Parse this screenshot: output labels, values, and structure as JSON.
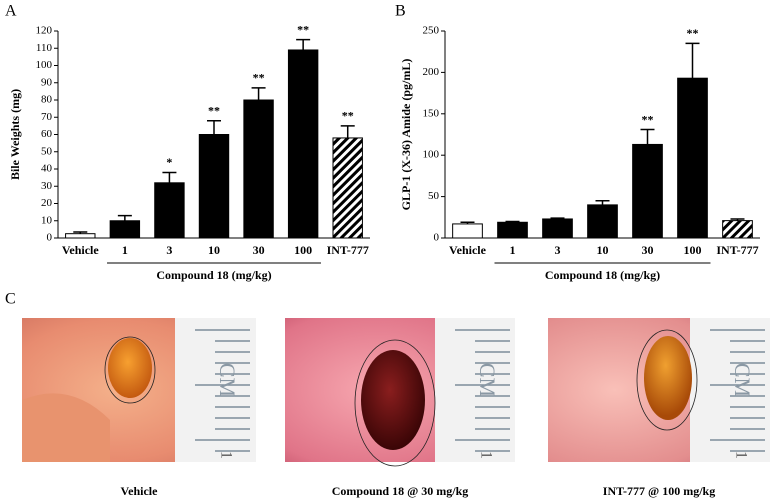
{
  "chart_data": [
    {
      "type": "bar",
      "panel": "A",
      "y_label": "Bile Weights (mg)",
      "group_label": "Compound 18 (mg/kg)",
      "categories": [
        "Vehicle",
        "1",
        "3",
        "10",
        "30",
        "100",
        "INT-777"
      ],
      "values": [
        2.5,
        10,
        32,
        60,
        80,
        109,
        58
      ],
      "errors": [
        1,
        3,
        6,
        8,
        7,
        6,
        7
      ],
      "significance": [
        null,
        null,
        "*",
        "**",
        "**",
        "**",
        "**"
      ],
      "colors": [
        "#ffffff",
        "#000000",
        "#000000",
        "#000000",
        "#000000",
        "#000000",
        "hatch"
      ],
      "ylim": [
        0,
        120
      ],
      "yticks": [
        0,
        10,
        20,
        30,
        40,
        50,
        60,
        70,
        80,
        90,
        100,
        110,
        120
      ]
    },
    {
      "type": "bar",
      "panel": "B",
      "y_label": "GLP-1 (X-36) Amide (pg/mL)",
      "group_label": "Compound 18 (mg/kg)",
      "categories": [
        "Vehicle",
        "1",
        "3",
        "10",
        "30",
        "100",
        "INT-777"
      ],
      "values": [
        17,
        19,
        23,
        40,
        113,
        193,
        21
      ],
      "errors": [
        2,
        1,
        1,
        5,
        18,
        42,
        2
      ],
      "significance": [
        null,
        null,
        null,
        null,
        "**",
        "**",
        null
      ],
      "colors": [
        "#ffffff",
        "#000000",
        "#000000",
        "#000000",
        "#000000",
        "#000000",
        "hatch"
      ],
      "ylim": [
        0,
        250
      ],
      "yticks": [
        0,
        50,
        100,
        150,
        200,
        250
      ]
    }
  ],
  "panel_c": {
    "label": "C",
    "ruler_label": "CM",
    "ruler_mark": "1",
    "photos": [
      {
        "caption": "Vehicle"
      },
      {
        "caption": "Compound 18 @ 30 mg/kg"
      },
      {
        "caption": "INT-777 @ 100 mg/kg"
      }
    ]
  }
}
